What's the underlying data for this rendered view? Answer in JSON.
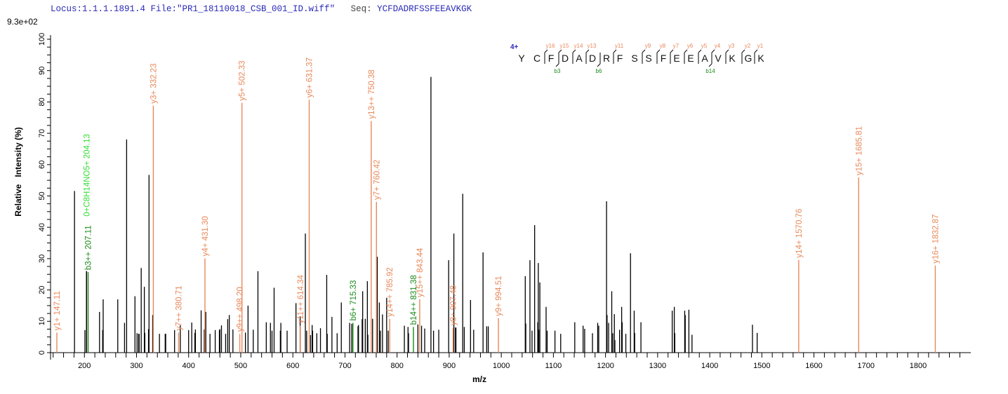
{
  "header": {
    "locus_file": "Locus:1.1.1.1891.4 File:\"PR1_18110018_CSB_001_ID.wiff\"",
    "seq_label": "Seq:",
    "sequence": "YCFDADRFSSFEEAVKGK"
  },
  "chart_data": {
    "type": "bar",
    "subtype": "mass-spectrum",
    "max_intensity_label": "9.3e+02",
    "xlabel": "m/z",
    "ylabel": "Relative   Intensity (%)",
    "xlim": [
      135,
      1901
    ],
    "ylim": [
      0,
      100
    ],
    "x_ticks": [
      200,
      300,
      400,
      500,
      600,
      700,
      800,
      900,
      1000,
      1100,
      1200,
      1300,
      1400,
      1500,
      1600,
      1700,
      1800
    ],
    "y_ticks": [
      0,
      10,
      20,
      30,
      40,
      50,
      60,
      70,
      80,
      90,
      100
    ],
    "grid": false,
    "colors": {
      "unmatched": "#000000",
      "y_ion": "#e8885a",
      "b_ion": "#1a8a1a",
      "other_ion": "#33dd33",
      "charge": "#2a2ab8"
    },
    "peaks": [
      [
        181,
        51.6
      ],
      [
        201,
        7.2
      ],
      [
        204,
        26
      ],
      [
        229,
        13
      ],
      [
        235,
        7.2
      ],
      [
        236,
        17
      ],
      [
        264,
        17
      ],
      [
        277,
        9.5
      ],
      [
        281,
        68
      ],
      [
        297,
        18
      ],
      [
        301,
        6.2
      ],
      [
        304,
        6
      ],
      [
        305,
        6
      ],
      [
        309,
        27
      ],
      [
        315,
        21
      ],
      [
        316,
        6.3
      ],
      [
        323,
        7.5
      ],
      [
        324,
        56.7
      ],
      [
        331,
        12
      ],
      [
        344,
        6
      ],
      [
        355,
        6
      ],
      [
        356,
        6
      ],
      [
        373,
        7.2
      ],
      [
        384,
        8.7
      ],
      [
        400,
        7.2
      ],
      [
        406,
        9.6
      ],
      [
        412,
        6.3
      ],
      [
        413,
        7.4
      ],
      [
        424,
        13.5
      ],
      [
        430,
        7.4
      ],
      [
        433,
        13
      ],
      [
        441,
        6
      ],
      [
        451,
        7.2
      ],
      [
        459,
        7.2
      ],
      [
        460,
        7.5
      ],
      [
        463,
        8.7
      ],
      [
        471,
        6
      ],
      [
        475,
        10.7
      ],
      [
        478,
        12
      ],
      [
        485,
        7.4
      ],
      [
        509,
        6.4
      ],
      [
        514,
        15
      ],
      [
        524,
        7.3
      ],
      [
        533,
        26
      ],
      [
        549,
        9.7
      ],
      [
        557,
        9.5
      ],
      [
        560,
        7
      ],
      [
        564,
        20.7
      ],
      [
        576,
        7
      ],
      [
        577,
        9.5
      ],
      [
        589,
        7
      ],
      [
        606,
        15.8
      ],
      [
        614,
        11.6
      ],
      [
        624,
        38
      ],
      [
        626.5,
        7
      ],
      [
        634,
        5.6
      ],
      [
        637,
        8.8
      ],
      [
        638,
        7
      ],
      [
        646,
        6.2
      ],
      [
        653,
        7.8
      ],
      [
        665,
        24.8
      ],
      [
        666,
        6
      ],
      [
        675,
        11.4
      ],
      [
        685,
        6.2
      ],
      [
        693,
        16
      ],
      [
        709,
        9.5
      ],
      [
        713,
        9.2
      ],
      [
        725,
        8.4
      ],
      [
        726,
        8.8
      ],
      [
        733,
        10.7
      ],
      [
        734,
        19.6
      ],
      [
        739,
        10.8
      ],
      [
        743,
        22.8
      ],
      [
        744,
        5.7
      ],
      [
        753,
        10.8
      ],
      [
        762,
        30.6
      ],
      [
        766,
        16
      ],
      [
        768,
        7
      ],
      [
        772,
        12.2
      ],
      [
        780,
        17.5
      ],
      [
        783,
        7
      ],
      [
        814,
        8.6
      ],
      [
        821,
        8.2
      ],
      [
        822,
        6.2
      ],
      [
        840,
        9
      ],
      [
        847,
        8.6
      ],
      [
        853,
        7.7
      ],
      [
        865,
        88
      ],
      [
        870,
        7
      ],
      [
        880,
        7.3
      ],
      [
        899,
        29.5
      ],
      [
        909,
        38
      ],
      [
        912,
        8
      ],
      [
        913,
        8
      ],
      [
        926,
        50.7
      ],
      [
        929,
        8.2
      ],
      [
        941,
        16.8
      ],
      [
        947,
        7.3
      ],
      [
        965,
        32
      ],
      [
        972,
        8.4
      ],
      [
        975,
        8.4
      ],
      [
        1046,
        24.4
      ],
      [
        1047,
        9.3
      ],
      [
        1055,
        29.5
      ],
      [
        1059,
        7
      ],
      [
        1064,
        40.7
      ],
      [
        1070,
        9.7
      ],
      [
        1071,
        28.6
      ],
      [
        1072,
        7.3
      ],
      [
        1074,
        22.4
      ],
      [
        1086,
        14.6
      ],
      [
        1088,
        7
      ],
      [
        1103,
        7
      ],
      [
        1114,
        6
      ],
      [
        1141,
        9.7
      ],
      [
        1157,
        8.6
      ],
      [
        1160,
        7.6
      ],
      [
        1175,
        6.2
      ],
      [
        1185,
        9.5
      ],
      [
        1187,
        8.6
      ],
      [
        1202,
        48.3
      ],
      [
        1203,
        12
      ],
      [
        1206,
        9.5
      ],
      [
        1212,
        19.6
      ],
      [
        1214,
        6.2
      ],
      [
        1217,
        12.3
      ],
      [
        1218,
        4
      ],
      [
        1227,
        7.3
      ],
      [
        1231,
        14.6
      ],
      [
        1232,
        9.7
      ],
      [
        1239,
        6
      ],
      [
        1248,
        31.7
      ],
      [
        1255,
        13.4
      ],
      [
        1256,
        6.3
      ],
      [
        1268,
        9.7
      ],
      [
        1328,
        13.4
      ],
      [
        1332,
        14.6
      ],
      [
        1333,
        6.2
      ],
      [
        1352,
        13.4
      ],
      [
        1353,
        12
      ],
      [
        1360,
        13.7
      ],
      [
        1366,
        5.7
      ],
      [
        1482,
        8.9
      ],
      [
        1491,
        6.3
      ]
    ],
    "annotated_peaks": [
      {
        "label": "y1+ 147.11",
        "mz": 147.11,
        "intensity": 6.4,
        "ion": "y"
      },
      {
        "label": "0+C8H14NO5+ 204.13",
        "mz": 204.13,
        "intensity": 26,
        "ion": "other"
      },
      {
        "label": "b3++ 207.11",
        "mz": 207.11,
        "intensity": 25.7,
        "ion": "b"
      },
      {
        "label": "y3+ 332.23",
        "mz": 332.23,
        "intensity": 78.8,
        "ion": "y"
      },
      {
        "label": "y7++ 380.71",
        "mz": 380.71,
        "intensity": 6.4,
        "ion": "y"
      },
      {
        "label": "y4+ 431.30",
        "mz": 431.3,
        "intensity": 30.1,
        "ion": "y"
      },
      {
        "label": "y9++ 498.20",
        "mz": 498.2,
        "intensity": 6,
        "ion": "y"
      },
      {
        "label": "y5+ 502.33",
        "mz": 502.33,
        "intensity": 79.7,
        "ion": "y"
      },
      {
        "label": "y11++ 614.34",
        "mz": 614.34,
        "intensity": 8.6,
        "ion": "y"
      },
      {
        "label": "y6+ 631.37",
        "mz": 631.37,
        "intensity": 80.7,
        "ion": "y"
      },
      {
        "label": "b6+ 715.33",
        "mz": 715.33,
        "intensity": 9.5,
        "ion": "b"
      },
      {
        "label": "y13++ 750.38",
        "mz": 750.38,
        "intensity": 73.9,
        "ion": "y"
      },
      {
        "label": "y7+ 760.42",
        "mz": 760.42,
        "intensity": 48.1,
        "ion": "y"
      },
      {
        "label": "y14++ 785.92",
        "mz": 785.92,
        "intensity": 10.8,
        "ion": "y"
      },
      {
        "label": "b14++ 831.38",
        "mz": 831.38,
        "intensity": 8.2,
        "ion": "b"
      },
      {
        "label": "y15++ 843.44",
        "mz": 843.44,
        "intensity": 17,
        "ion": "y"
      },
      {
        "label": "y8+ 907.48",
        "mz": 907.48,
        "intensity": 8,
        "ion": "y"
      },
      {
        "label": "y9+ 994.51",
        "mz": 994.51,
        "intensity": 11,
        "ion": "y"
      },
      {
        "label": "y14+ 1570.76",
        "mz": 1570.76,
        "intensity": 29.6,
        "ion": "y"
      },
      {
        "label": "y15+ 1685.81",
        "mz": 1685.81,
        "intensity": 55.9,
        "ion": "y"
      },
      {
        "label": "y16+ 1832.87",
        "mz": 1832.87,
        "intensity": 27.8,
        "ion": "y"
      }
    ]
  },
  "peptide_map": {
    "charge": "4+",
    "residues": [
      "Y",
      "C",
      "F",
      "D",
      "A",
      "D",
      "R",
      "F",
      "S",
      "S",
      "F",
      "E",
      "E",
      "A",
      "V",
      "K",
      "G",
      "K"
    ],
    "y_ions": [
      {
        "before_index": 2,
        "label": "y16"
      },
      {
        "before_index": 3,
        "label": "y15"
      },
      {
        "before_index": 4,
        "label": "y14"
      },
      {
        "before_index": 5,
        "label": "y13"
      },
      {
        "before_index": 7,
        "label": "y11"
      },
      {
        "before_index": 9,
        "label": "y9"
      },
      {
        "before_index": 10,
        "label": "y8"
      },
      {
        "before_index": 11,
        "label": "y7"
      },
      {
        "before_index": 12,
        "label": "y6"
      },
      {
        "before_index": 13,
        "label": "y5"
      },
      {
        "before_index": 14,
        "label": "y4"
      },
      {
        "before_index": 15,
        "label": "y3"
      },
      {
        "before_index": 16,
        "label": "y2"
      },
      {
        "before_index": 17,
        "label": "y1"
      }
    ],
    "b_ions": [
      {
        "before_index": 3,
        "label": "b3"
      },
      {
        "before_index": 6,
        "label": "b6"
      },
      {
        "before_index": 14,
        "label": "b14"
      }
    ]
  }
}
